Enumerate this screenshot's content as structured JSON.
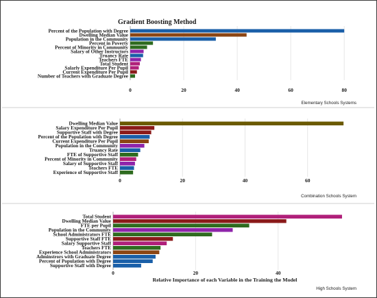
{
  "title": "Gradient Boosting Method",
  "xlabel": "Relative Importance of each Variable in the Training the Model",
  "colors": {
    "blue": "#1a5fa8",
    "brown": "#8b4513",
    "olive": "#6b5a00",
    "darkred": "#8b1a1a",
    "green": "#2e6b1f",
    "purple": "#8e24aa",
    "magenta": "#b0207a"
  },
  "chart_data": [
    {
      "type": "bar",
      "orientation": "horizontal",
      "caption": "Elementary Schools Systems",
      "xlim": [
        0,
        82
      ],
      "xticks": [
        0,
        20,
        40,
        60,
        80
      ],
      "categories": [
        "Percent of the Population with Degree",
        "Dwelling Median Value",
        "Population in the Community",
        "Percent in Poverty",
        "Percent of Minority in Community",
        "Salary of Other Instructors",
        "Truancy Rate",
        "Teachers FTE",
        "Total Student",
        "Salarly Expenditure Per Pupil",
        "Current Expenditure Per Pupil",
        "Number of Teachers with Graduate Degree"
      ],
      "values": [
        80,
        43.5,
        32,
        8.5,
        6.3,
        5,
        4.8,
        4,
        3.6,
        3.2,
        2.5,
        1.8
      ],
      "colors": [
        "blue",
        "brown",
        "blue",
        "green",
        "green",
        "purple",
        "blue",
        "purple",
        "magenta",
        "magenta",
        "darkred",
        "green"
      ]
    },
    {
      "type": "bar",
      "orientation": "horizontal",
      "caption": "Combination Schools System",
      "xlim": [
        0,
        73
      ],
      "xticks": [
        0,
        20,
        40,
        60
      ],
      "categories": [
        "Dwelling Median Value",
        "Salary Expenditure Per Pupil",
        "Supportive Staff with Degree",
        "Percent of the Population with Degree",
        "Current Expenditure Per Pupil",
        "Population in the Community",
        "Truancy Rate",
        "FTE of Supportive Staff",
        "Percent of Minority in Community",
        "Salary of Supportive Staff",
        "Teachers FTE",
        "Experience of Supportive Staff"
      ],
      "values": [
        71.5,
        11,
        10,
        9.5,
        9.2,
        7.8,
        6.5,
        5.8,
        5.2,
        4.8,
        4.5,
        4.2
      ],
      "colors": [
        "olive",
        "darkred",
        "darkred",
        "blue",
        "brown",
        "purple",
        "blue",
        "green",
        "magenta",
        "purple",
        "blue",
        "green"
      ]
    },
    {
      "type": "bar",
      "orientation": "horizontal",
      "caption": "High Schools System",
      "xlim": [
        0,
        57
      ],
      "xticks": [
        0,
        20,
        40
      ],
      "categories": [
        "Total Student",
        "Dwelling Median Value",
        "FTE per Pupil",
        "Population in the Community",
        "School Administrators FTE",
        "Supportive Staff FTE",
        "Salary Supportive Staff",
        "Teachers FTE",
        "Experience School Administrators",
        "Adminstrors with Graduate Degree",
        "Percent of Population with Degree",
        "Supportive Staff with Degree"
      ],
      "values": [
        55.5,
        42,
        33,
        29,
        24,
        14.5,
        13,
        11.5,
        11.2,
        10.3,
        9.6,
        6.8
      ],
      "colors": [
        "magenta",
        "darkred",
        "green",
        "purple",
        "green",
        "darkred",
        "magenta",
        "green",
        "brown",
        "blue",
        "blue",
        "blue"
      ]
    }
  ]
}
